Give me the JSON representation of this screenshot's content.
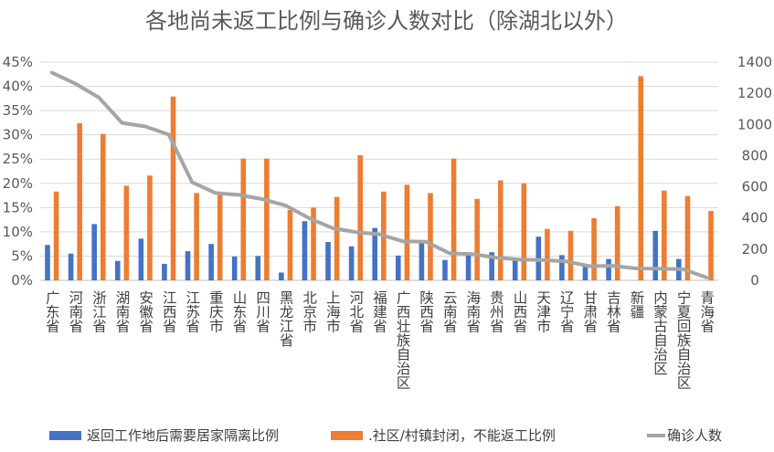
{
  "chart_data": {
    "type": "bar",
    "title": "各地尚未返工比例与确诊人数对比（除湖北以外）",
    "categories": [
      "广东省",
      "河南省",
      "浙江省",
      "湖南省",
      "安徽省",
      "江西省",
      "江苏省",
      "重庆市",
      "山东省",
      "四川省",
      "黑龙江省",
      "北京市",
      "上海市",
      "河北省",
      "福建省",
      "广西壮族自治区",
      "陕西省",
      "云南省",
      "海南省",
      "贵州省",
      "山西省",
      "天津市",
      "辽宁省",
      "甘肃省",
      "吉林省",
      "新疆",
      "内蒙古自治区",
      "宁夏回族自治区",
      "青海省"
    ],
    "series": [
      {
        "name": "返回工作地后需要居家隔离比例",
        "axis": "left",
        "chart": "bar",
        "color": "#4472c4",
        "values": [
          7.3,
          5.5,
          11.6,
          4.0,
          8.6,
          3.4,
          6.0,
          7.5,
          4.9,
          5.0,
          1.6,
          12.2,
          7.9,
          7.0,
          10.8,
          5.1,
          8.0,
          4.2,
          5.6,
          5.8,
          4.1,
          9.0,
          5.2,
          3.0,
          4.4,
          0.0,
          10.2,
          4.4,
          0.0
        ]
      },
      {
        "name": ".社区/村镇封闭，不能返工比例",
        "axis": "left",
        "chart": "bar",
        "color": "#ed7d31",
        "values": [
          18.3,
          32.4,
          30.2,
          19.5,
          21.6,
          37.9,
          18.0,
          18.2,
          25.1,
          25.1,
          14.5,
          15.0,
          17.2,
          25.8,
          18.3,
          19.7,
          18.0,
          25.1,
          16.8,
          20.6,
          20.0,
          10.6,
          10.2,
          12.8,
          15.3,
          42.1,
          18.5,
          17.4,
          14.3
        ]
      },
      {
        "name": "确诊人数",
        "axis": "right",
        "chart": "line",
        "color": "#a5a5a5",
        "values": [
          1332,
          1262,
          1174,
          1010,
          987,
          935,
          629,
          560,
          548,
          521,
          480,
          399,
          335,
          309,
          296,
          251,
          248,
          174,
          168,
          146,
          133,
          130,
          121,
          91,
          93,
          76,
          75,
          71,
          18
        ]
      }
    ],
    "ylim_left": [
      0,
      45
    ],
    "ylim_right": [
      0,
      1400
    ],
    "yticks_left": [
      "0%",
      "5%",
      "10%",
      "15%",
      "20%",
      "25%",
      "30%",
      "35%",
      "40%",
      "45%"
    ],
    "yticks_right": [
      "0",
      "200",
      "400",
      "600",
      "800",
      "1000",
      "1200",
      "1400"
    ],
    "grid": true,
    "legend_position": "bottom"
  }
}
